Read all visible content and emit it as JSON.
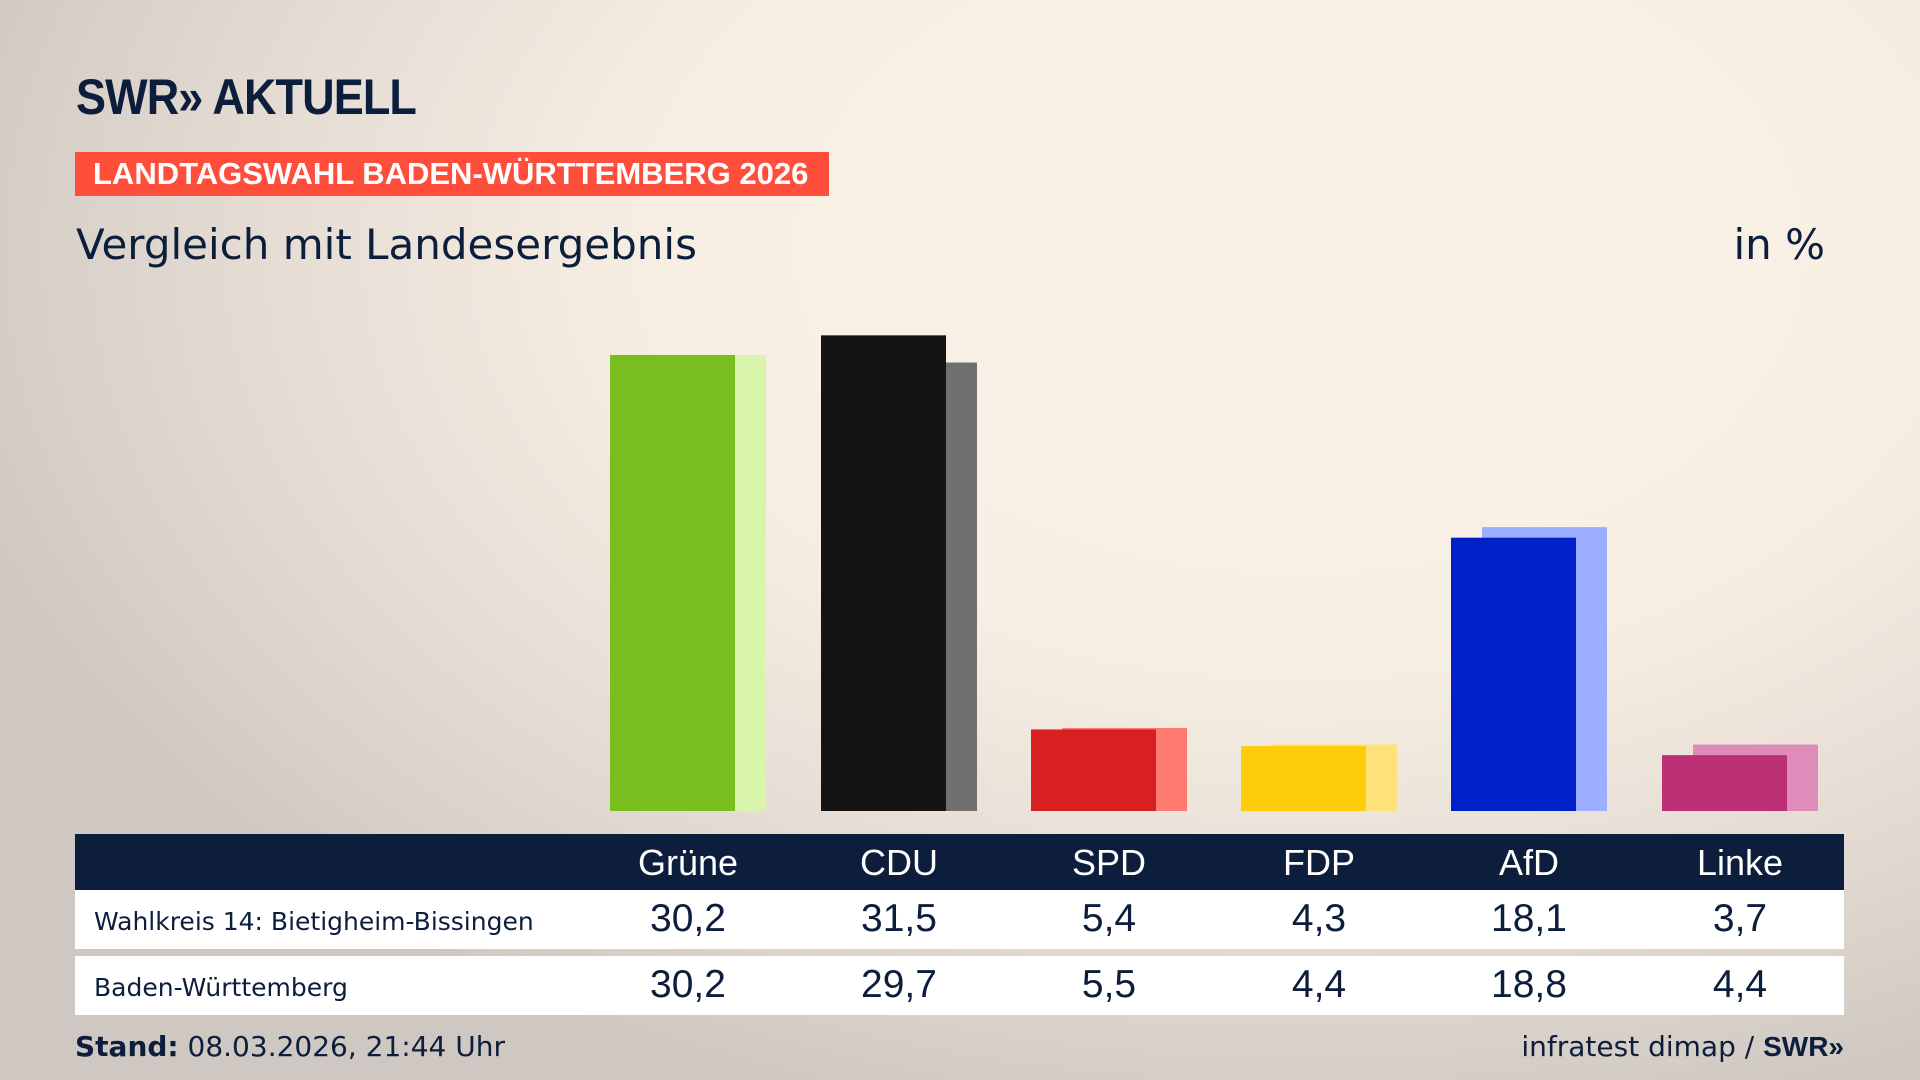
{
  "header": {
    "logo": "SWR» AKTUELL",
    "banner": "LANDTAGSWAHL BADEN-WÜRTTEMBERG 2026",
    "subtitle": "Vergleich mit Landesergebnis",
    "unit": "in %"
  },
  "chart_data": {
    "type": "bar",
    "categories": [
      "Grüne",
      "CDU",
      "SPD",
      "FDP",
      "AfD",
      "Linke"
    ],
    "series": [
      {
        "name": "Wahlkreis 14: Bietigheim-Bissingen",
        "values": [
          30.2,
          31.5,
          5.4,
          4.3,
          18.1,
          3.7
        ],
        "display": [
          "30,2",
          "31,5",
          "5,4",
          "4,3",
          "18,1",
          "3,7"
        ]
      },
      {
        "name": "Baden-Württemberg",
        "values": [
          30.2,
          29.7,
          5.5,
          4.4,
          18.8,
          4.4
        ],
        "display": [
          "30,2",
          "29,7",
          "5,5",
          "4,4",
          "18,8",
          "4,4"
        ]
      }
    ],
    "colors": [
      "#78be1e",
      "#141414",
      "#d7201f",
      "#ffcc0b",
      "#0020c8",
      "#be3075"
    ],
    "colors_light": [
      "#d8f5ab",
      "#707070",
      "#ff7a70",
      "#ffe277",
      "#9caeff",
      "#e08cba"
    ],
    "ylim": [
      0,
      32
    ]
  },
  "footer": {
    "stand_label": "Stand:",
    "stand_value": "08.03.2026, 21:44 Uhr",
    "source": "infratest dimap /",
    "source_logo": "SWR»"
  }
}
